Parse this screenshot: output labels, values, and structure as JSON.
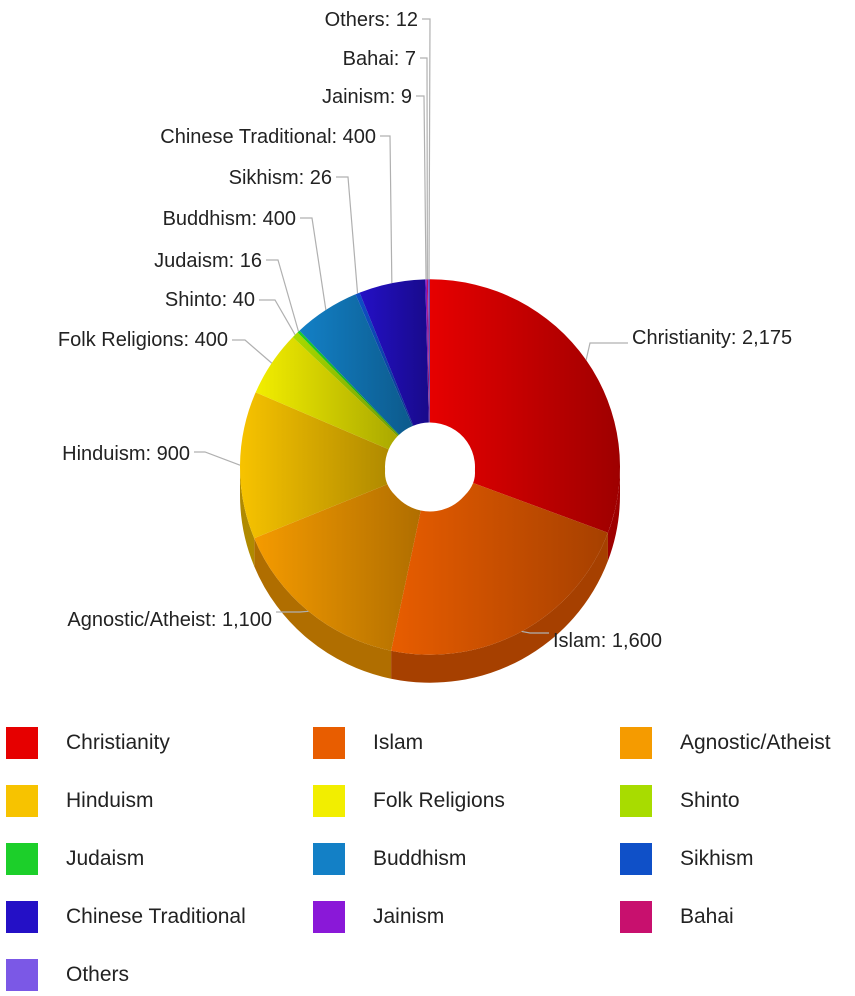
{
  "chart_data": {
    "type": "pie",
    "variant": "3d-donut",
    "title": "",
    "legend_placement": "bottom",
    "slices": [
      {
        "name": "Christianity",
        "value": 2175,
        "label": "Christianity: 2,175",
        "color": "#e60000",
        "dark": "#9e0000"
      },
      {
        "name": "Islam",
        "value": 1600,
        "label": "Islam: 1,600",
        "color": "#e85d00",
        "dark": "#a64000"
      },
      {
        "name": "Agnostic/Atheist",
        "value": 1100,
        "label": "Agnostic/Atheist: 1,100",
        "color": "#f59b00",
        "dark": "#b06e00"
      },
      {
        "name": "Hinduism",
        "value": 900,
        "label": "Hinduism: 900",
        "color": "#f7c300",
        "dark": "#b08a00"
      },
      {
        "name": "Folk Religions",
        "value": 400,
        "label": "Folk Religions: 400",
        "color": "#f2ee00",
        "dark": "#aaa800"
      },
      {
        "name": "Shinto",
        "value": 40,
        "label": "Shinto: 40",
        "color": "#a8dc00",
        "dark": "#749a00"
      },
      {
        "name": "Judaism",
        "value": 16,
        "label": "Judaism: 16",
        "color": "#1ccf2a",
        "dark": "#14911d"
      },
      {
        "name": "Buddhism",
        "value": 400,
        "label": "Buddhism: 400",
        "color": "#1380c6",
        "dark": "#0c5a8c"
      },
      {
        "name": "Sikhism",
        "value": 26,
        "label": "Sikhism: 26",
        "color": "#0f50c8",
        "dark": "#0a378c"
      },
      {
        "name": "Chinese Traditional",
        "value": 400,
        "label": "Chinese Traditional: 400",
        "color": "#2410c6",
        "dark": "#180a8a"
      },
      {
        "name": "Jainism",
        "value": 9,
        "label": "Jainism: 9",
        "color": "#8a18d8",
        "dark": "#601096"
      },
      {
        "name": "Bahai",
        "value": 7,
        "label": "Bahai: 7",
        "color": "#c8106e",
        "dark": "#8c0b4d"
      },
      {
        "name": "Others",
        "value": 12,
        "label": "Others: 12",
        "color": "#7b58e6",
        "dark": "#563ea1"
      }
    ]
  }
}
